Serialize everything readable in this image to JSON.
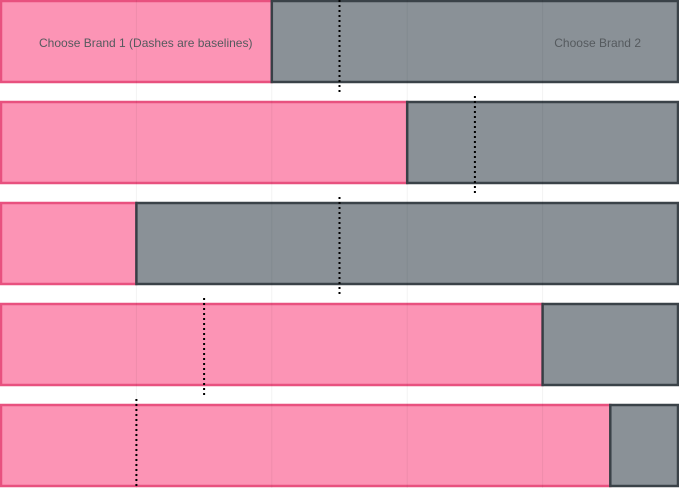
{
  "chart_data": {
    "type": "bar",
    "orientation": "horizontal-stacked",
    "legend": {
      "series1_label": "Choose Brand 1 (Dashes are baselines)",
      "series2_label": "Choose Brand 2"
    },
    "xlim": [
      0,
      1
    ],
    "series": [
      {
        "color": "#fc94b5",
        "values": [
          0.4,
          0.6,
          0.2,
          0.8,
          0.9
        ]
      },
      {
        "color": "#8a9197",
        "values": [
          0.6,
          0.4,
          0.8,
          0.2,
          0.1
        ]
      }
    ],
    "baselines": [
      0.5,
      0.7,
      0.5,
      0.3,
      0.2
    ],
    "grid": true,
    "colors": {
      "series1_border": "#e8517f",
      "series2_border": "#3a4248",
      "baseline": "#000000"
    }
  }
}
